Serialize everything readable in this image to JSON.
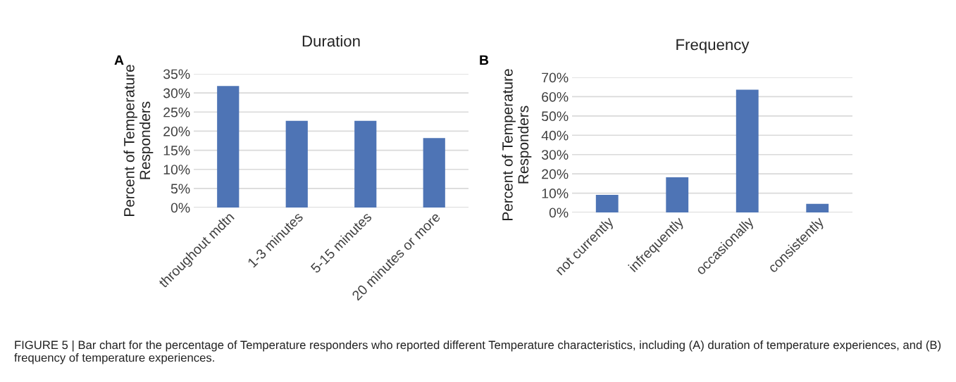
{
  "chart_data": [
    {
      "type": "bar",
      "title": "Duration",
      "ylabel": "Percent of Temperature\nResponders",
      "categories": [
        "throughout mdtn",
        "1-3 minutes",
        "5-15 minutes",
        "20 minutes or more"
      ],
      "values": [
        31.8,
        22.7,
        22.7,
        18.2
      ],
      "color": "#4e74b5",
      "ylim": [
        0,
        35
      ],
      "yticks": [
        {
          "value": 0,
          "label": "0%"
        },
        {
          "value": 5,
          "label": "5%"
        },
        {
          "value": 10,
          "label": "10%"
        },
        {
          "value": 15,
          "label": "15%"
        },
        {
          "value": 20,
          "label": "20%"
        },
        {
          "value": 25,
          "label": "25%"
        },
        {
          "value": 30,
          "label": "30%"
        },
        {
          "value": 35,
          "label": "35%"
        }
      ],
      "grid": "y",
      "annotations": [
        "A",
        "FIGURE 5 | Bar chart for the percentage of Temperature responders who reported different Temperature characteristics, including (A) duration of temperature experiences, and (B) frequency of temperature experiences."
      ]
    },
    {
      "type": "bar",
      "title": "Frequency",
      "ylabel": "Percent of Temperature\nResponders",
      "categories": [
        "not currently",
        "infrequently",
        "occasionally",
        "consistently"
      ],
      "values": [
        9.1,
        18.2,
        63.6,
        4.5
      ],
      "color": "#4e74b5",
      "ylim": [
        0,
        70
      ],
      "yticks": [
        {
          "value": 0,
          "label": "0%"
        },
        {
          "value": 10,
          "label": "10%"
        },
        {
          "value": 20,
          "label": "20%"
        },
        {
          "value": 30,
          "label": "30%"
        },
        {
          "value": 40,
          "label": "40%"
        },
        {
          "value": 50,
          "label": "50%"
        },
        {
          "value": 60,
          "label": "60%"
        },
        {
          "value": 70,
          "label": "70%"
        }
      ],
      "grid": "y",
      "annotations": [
        "B"
      ]
    }
  ]
}
